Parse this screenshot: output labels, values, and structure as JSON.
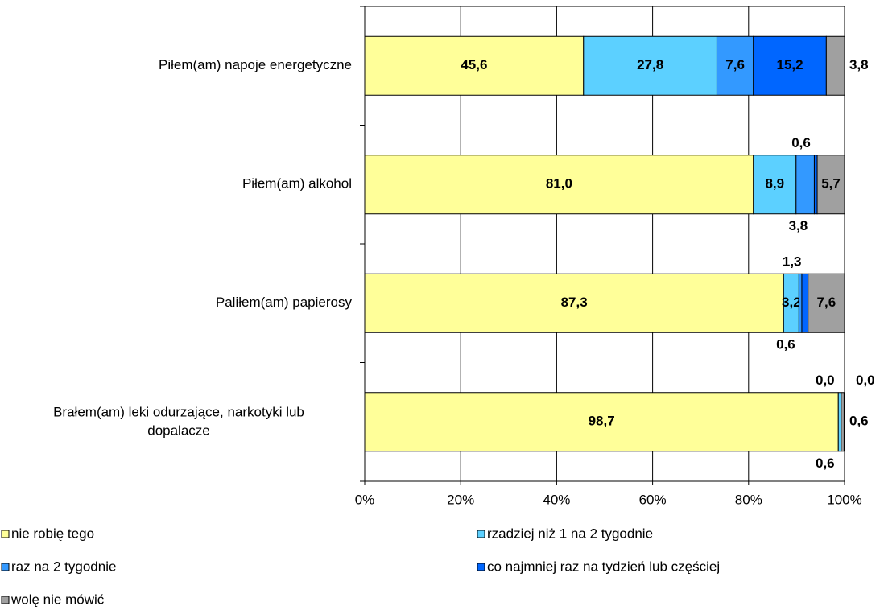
{
  "chart_data": {
    "type": "stacked-bar-horizontal",
    "categories": [
      "Piłem(am) napoje energetyczne",
      "Piłem(am) alkohol",
      "Paliłem(am) papierosy",
      "Brałem(am) leki odurzające, narkotyki lub dopalacze"
    ],
    "series": [
      {
        "name": "nie robię tego",
        "color": "#ffff99",
        "values": [
          45.6,
          81.0,
          87.3,
          98.7
        ],
        "value_labels": [
          "45,6",
          "81,0",
          "87,3",
          "98,7"
        ]
      },
      {
        "name": "rzadziej niż 1 na 2 tygodnie",
        "color": "#5cd0ff",
        "values": [
          27.8,
          8.9,
          3.2,
          0.6
        ],
        "value_labels": [
          "27,8",
          "8,9",
          "3,2",
          "0,6"
        ]
      },
      {
        "name": "raz na 2 tygodnie",
        "color": "#3399ff",
        "values": [
          7.6,
          3.8,
          0.6,
          0.0
        ],
        "value_labels": [
          "7,6",
          "3,8",
          "0,6",
          "0,0"
        ]
      },
      {
        "name": "co najmniej raz na tydzień lub częściej",
        "color": "#0066ff",
        "values": [
          15.2,
          0.6,
          1.3,
          0.0
        ],
        "value_labels": [
          "15,2",
          "0,6",
          "1,3",
          "0,0"
        ]
      },
      {
        "name": "wolę nie mówić",
        "color": "#a0a0a0",
        "values": [
          3.8,
          5.7,
          7.6,
          0.6
        ],
        "value_labels": [
          "3,8",
          "5,7",
          "7,6",
          "0,6"
        ]
      }
    ],
    "xlim": [
      0,
      100
    ],
    "xticks": [
      {
        "value": 0,
        "label": "0%"
      },
      {
        "value": 20,
        "label": "20%"
      },
      {
        "value": 40,
        "label": "40%"
      },
      {
        "value": 60,
        "label": "60%"
      },
      {
        "value": 80,
        "label": "80%"
      },
      {
        "value": 100,
        "label": "100%"
      }
    ],
    "grid": true,
    "legend": "bottom"
  }
}
